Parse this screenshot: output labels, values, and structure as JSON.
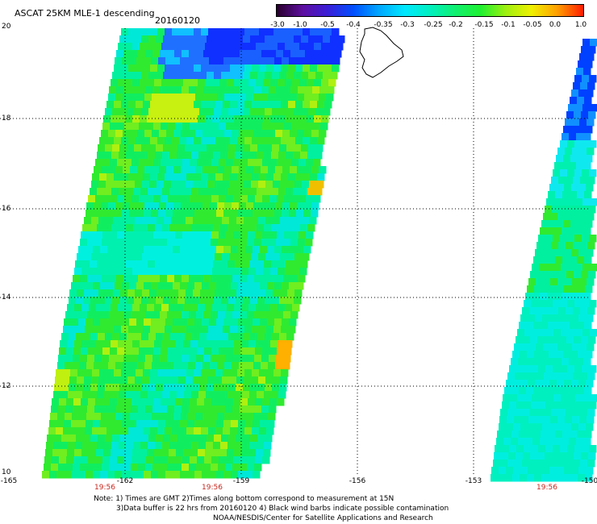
{
  "header": {
    "title": "ASCAT 25KM MLE-1 descending",
    "date": "20160120"
  },
  "colorbar": {
    "labels": [
      "-3.0",
      "-1.0",
      "-0.5",
      "-0.4",
      "-0.35",
      "-0.3",
      "-0.25",
      "-0.2",
      "-0.15",
      "-0.1",
      "-0.05",
      "0.0",
      "1.0"
    ],
    "colors": [
      "#2a0030",
      "#5e10a0",
      "#3a20d8",
      "#0050ff",
      "#00a8ff",
      "#00e8ff",
      "#00f0c0",
      "#10f070",
      "#20f030",
      "#a0f010",
      "#f0f000",
      "#ffa000",
      "#ff2000"
    ]
  },
  "map": {
    "lat_labels": [
      "20",
      "18",
      "16",
      "14",
      "12",
      "10"
    ],
    "lon_labels": [
      "-165",
      "-162",
      "-159",
      "-156",
      "-153",
      "-150"
    ],
    "time_labels": [
      "19:56",
      "19:56",
      "19:56"
    ]
  },
  "notes": [
    "Note: 1) Times are GMT 2)Times along bottom correspond to measurement at 15N",
    "3)Data buffer is 22 hrs from 20160120 4) Black wind barbs indicate possible contamination",
    "NOAA/NESDIS/Center for Satellite Applications and Research"
  ]
}
